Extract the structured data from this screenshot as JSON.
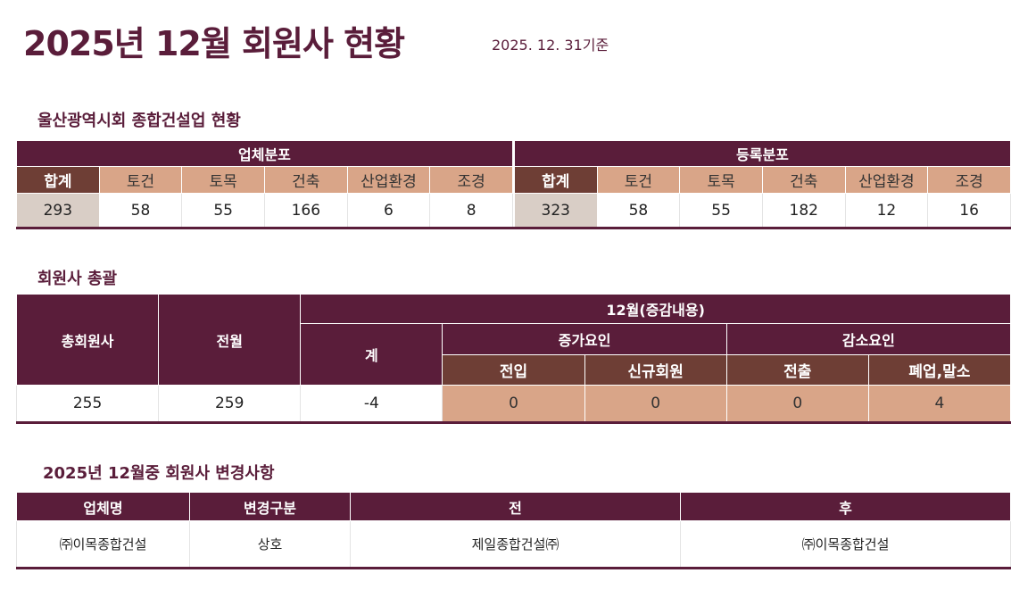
{
  "title": "2025년 12월 회원사 현황",
  "date": "2025. 12. 31기준",
  "s1": {
    "title": "울산광역시회 종합건설업 현황",
    "groups": [
      "업체분포",
      "등록분포"
    ],
    "cols": [
      "합계",
      "토건",
      "토목",
      "건축",
      "산업환경",
      "조경"
    ],
    "biz": [
      "293",
      "58",
      "55",
      "166",
      "6",
      "8"
    ],
    "reg": [
      "323",
      "58",
      "55",
      "182",
      "12",
      "16"
    ]
  },
  "s2": {
    "title": "회원사 총괄",
    "total": "총회원사",
    "prev": "전월",
    "month": "12월(증감내용)",
    "sum": "계",
    "inc": "증가요인",
    "dec": "감소요인",
    "sub": [
      "전입",
      "신규회원",
      "전출",
      "폐업,말소"
    ],
    "values": [
      "255",
      "259",
      "-4",
      "0",
      "0",
      "0",
      "4"
    ]
  },
  "s3": {
    "title": "2025년 12월중 회원사 변경사항",
    "headers": [
      "업체명",
      "변경구분",
      "전",
      "후"
    ],
    "rows": [
      [
        "㈜이목종합건설",
        "상호",
        "제일종합건설㈜",
        "㈜이목종합건설"
      ]
    ]
  },
  "colors": {
    "header": "#5a1d3a",
    "dark": "#6e3e35",
    "tan": "#d9a588",
    "gray": "#d9cec6"
  }
}
